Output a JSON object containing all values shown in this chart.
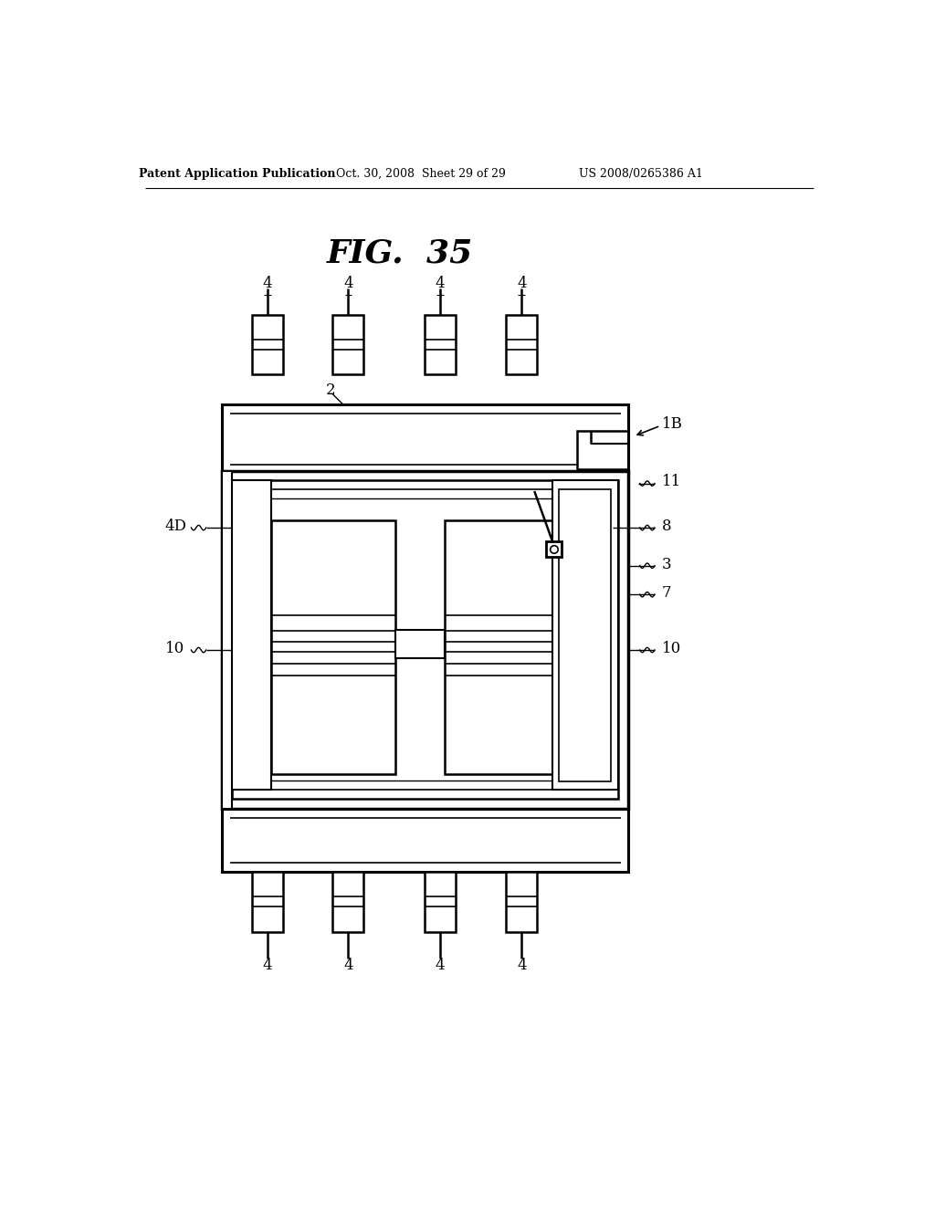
{
  "header_left": "Patent Application Publication",
  "header_center": "Oct. 30, 2008  Sheet 29 of 29",
  "header_right": "US 2008/0265386 A1",
  "title": "FIG.  35",
  "bg_color": "#ffffff"
}
